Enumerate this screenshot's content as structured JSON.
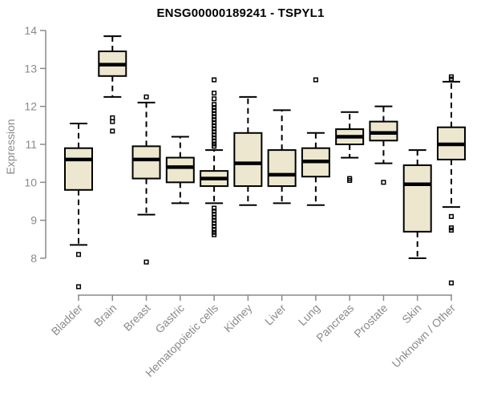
{
  "header": {
    "title": "ENSG00000189241 - TSPYL1"
  },
  "axes": {
    "y_label": "Expression",
    "y_ticks": [
      8,
      9,
      10,
      11,
      12,
      13,
      14
    ],
    "y_range": [
      8,
      14
    ]
  },
  "colors": {
    "box_fill": "#EDE7CF",
    "box_stroke": "#000000",
    "axis": "#8a8a8a",
    "tick_text": "#8a8a8a",
    "title_text": "#000000"
  },
  "chart_data": {
    "type": "boxplot",
    "title": "ENSG00000189241 - TSPYL1",
    "xlabel": "",
    "ylabel": "Expression",
    "ylim": [
      8,
      14
    ],
    "yticks": [
      8,
      9,
      10,
      11,
      12,
      13,
      14
    ],
    "grid": false,
    "legend": "none",
    "categories": [
      "Bladder",
      "Brain",
      "Breast",
      "Gastric",
      "Hematopoietic cells",
      "Kidney",
      "Liver",
      "Lung",
      "Pancreas",
      "Prostate",
      "Skin",
      "Unknown / Other"
    ],
    "series": [
      {
        "name": "Bladder",
        "whisker_low": 8.35,
        "q1": 9.8,
        "median": 10.6,
        "q3": 10.9,
        "whisker_high": 11.55,
        "outliers": [
          8.1,
          7.25
        ]
      },
      {
        "name": "Brain",
        "whisker_low": 12.25,
        "q1": 12.8,
        "median": 13.1,
        "q3": 13.45,
        "whisker_high": 13.85,
        "outliers": [
          11.7,
          11.6,
          11.35
        ]
      },
      {
        "name": "Breast",
        "whisker_low": 9.15,
        "q1": 10.1,
        "median": 10.6,
        "q3": 10.95,
        "whisker_high": 12.1,
        "outliers": [
          12.25,
          7.9
        ]
      },
      {
        "name": "Gastric",
        "whisker_low": 9.45,
        "q1": 10.0,
        "median": 10.4,
        "q3": 10.65,
        "whisker_high": 11.2,
        "outliers": []
      },
      {
        "name": "Hematopoietic cells",
        "whisker_low": 9.45,
        "q1": 9.9,
        "median": 10.1,
        "q3": 10.3,
        "whisker_high": 10.85,
        "outliers": [
          12.7,
          12.35,
          12.2,
          12.05,
          11.97,
          11.89,
          11.81,
          11.73,
          11.65,
          11.57,
          11.49,
          11.41,
          11.33,
          11.25,
          11.17,
          11.09,
          11.01,
          10.95,
          9.32,
          9.24,
          9.16,
          9.08,
          9.0,
          8.92,
          8.84,
          8.76,
          8.68,
          8.62
        ]
      },
      {
        "name": "Kidney",
        "whisker_low": 9.4,
        "q1": 9.9,
        "median": 10.5,
        "q3": 11.3,
        "whisker_high": 12.25,
        "outliers": []
      },
      {
        "name": "Liver",
        "whisker_low": 9.45,
        "q1": 9.9,
        "median": 10.2,
        "q3": 10.85,
        "whisker_high": 11.9,
        "outliers": []
      },
      {
        "name": "Lung",
        "whisker_low": 9.4,
        "q1": 10.15,
        "median": 10.55,
        "q3": 10.9,
        "whisker_high": 11.3,
        "outliers": [
          12.7
        ]
      },
      {
        "name": "Pancreas",
        "whisker_low": 10.65,
        "q1": 11.0,
        "median": 11.2,
        "q3": 11.4,
        "whisker_high": 11.85,
        "outliers": [
          10.1,
          10.05
        ]
      },
      {
        "name": "Prostate",
        "whisker_low": 10.5,
        "q1": 11.1,
        "median": 11.3,
        "q3": 11.6,
        "whisker_high": 12.0,
        "outliers": [
          10.0
        ]
      },
      {
        "name": "Skin",
        "whisker_low": 8.0,
        "q1": 8.7,
        "median": 9.95,
        "q3": 10.45,
        "whisker_high": 10.85,
        "outliers": []
      },
      {
        "name": "Unknown / Other",
        "whisker_low": 9.35,
        "q1": 10.6,
        "median": 11.0,
        "q3": 11.45,
        "whisker_high": 12.65,
        "outliers": [
          12.78,
          12.72,
          9.1,
          8.8,
          8.74,
          7.35
        ]
      }
    ]
  }
}
